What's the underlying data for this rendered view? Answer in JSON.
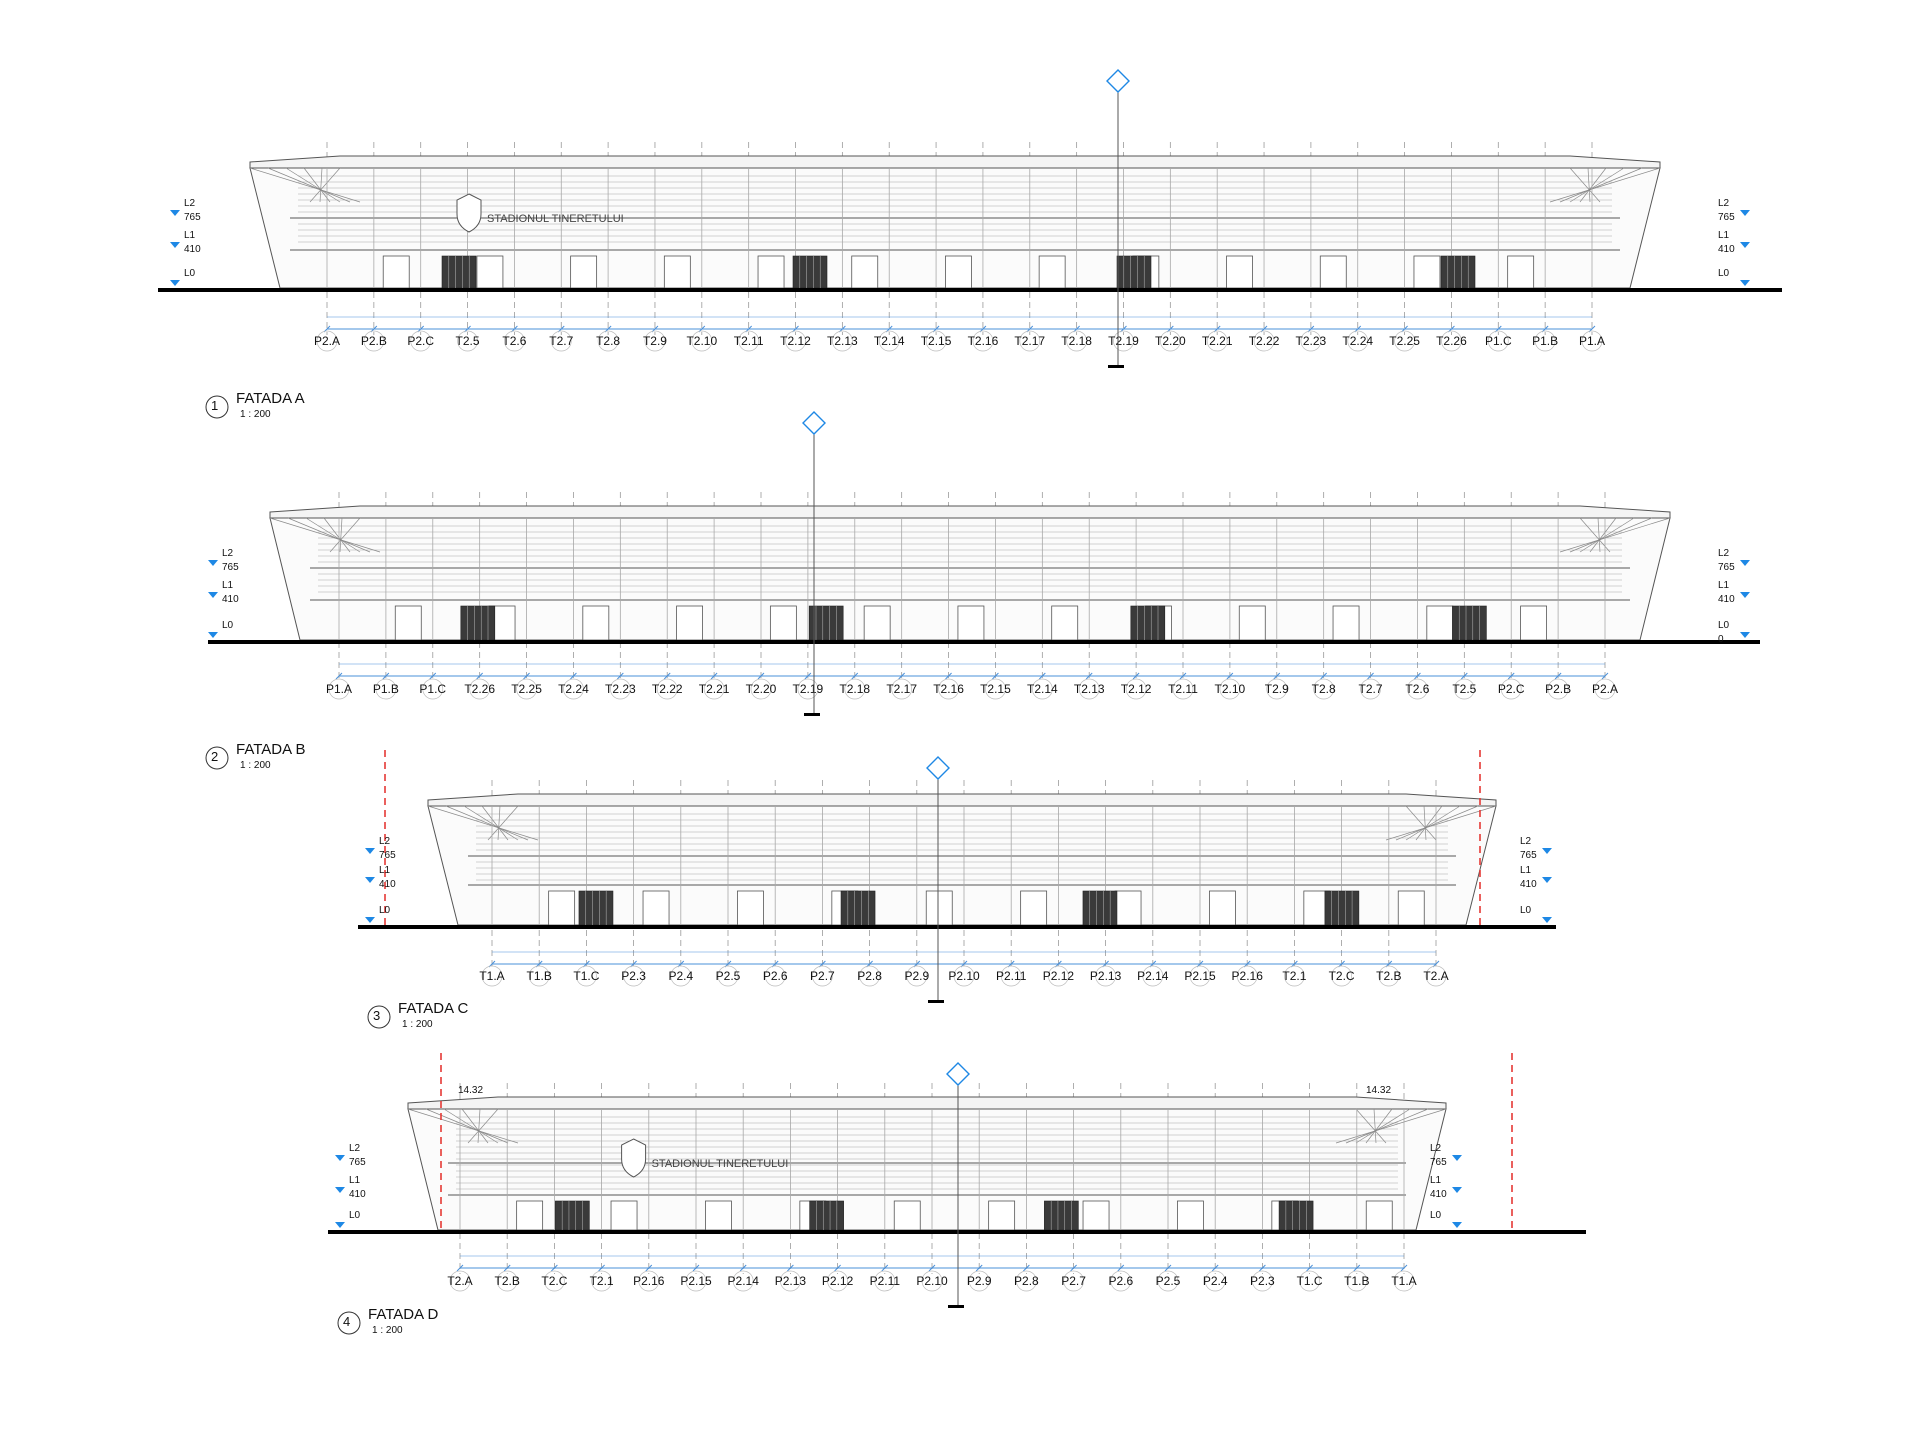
{
  "elevations": [
    {
      "title": "FATADA A",
      "number": "1",
      "scale": "1 : 200",
      "sign_text": "STADIONUL TINERETULUI",
      "levels_left": [
        {
          "name": "L2",
          "value": "765"
        },
        {
          "name": "L1",
          "value": "410"
        },
        {
          "name": "L0",
          "value": ""
        }
      ],
      "levels_right": [
        {
          "name": "L2",
          "value": "765"
        },
        {
          "name": "L1",
          "value": "410"
        },
        {
          "name": "L0",
          "value": ""
        }
      ],
      "grid_labels": [
        "P2.A",
        "P2.B",
        "P2.C",
        "T2.5",
        "T2.6",
        "T2.7",
        "T2.8",
        "T2.9",
        "T2.10",
        "T2.11",
        "T2.12",
        "T2.13",
        "T2.14",
        "T2.15",
        "T2.16",
        "T2.17",
        "T2.18",
        "T2.19",
        "T2.20",
        "T2.21",
        "T2.22",
        "T2.23",
        "T2.24",
        "T2.25",
        "T2.26",
        "P1.C",
        "P1.B",
        "P1.A"
      ]
    },
    {
      "title": "FATADA B",
      "number": "2",
      "scale": "1 : 200",
      "sign_text": "",
      "levels_left": [
        {
          "name": "L2",
          "value": "765"
        },
        {
          "name": "L1",
          "value": "410"
        },
        {
          "name": "L0",
          "value": ""
        }
      ],
      "levels_right": [
        {
          "name": "L2",
          "value": "765"
        },
        {
          "name": "L1",
          "value": "410"
        },
        {
          "name": "L0",
          "value": "0"
        }
      ],
      "grid_labels": [
        "P1.A",
        "P1.B",
        "P1.C",
        "T2.26",
        "T2.25",
        "T2.24",
        "T2.23",
        "T2.22",
        "T2.21",
        "T2.20",
        "T2.19",
        "T2.18",
        "T2.17",
        "T2.16",
        "T2.15",
        "T2.14",
        "T2.13",
        "T2.12",
        "T2.11",
        "T2.10",
        "T2.9",
        "T2.8",
        "T2.7",
        "T2.6",
        "T2.5",
        "P2.C",
        "P2.B",
        "P2.A"
      ]
    },
    {
      "title": "FATADA C",
      "number": "3",
      "scale": "1 : 200",
      "sign_text": "",
      "levels_left": [
        {
          "name": "L2",
          "value": "765"
        },
        {
          "name": "L1",
          "value": "410"
        },
        {
          "name": "L0",
          "value": ""
        }
      ],
      "levels_right": [
        {
          "name": "L2",
          "value": "765"
        },
        {
          "name": "L1",
          "value": "410"
        },
        {
          "name": "L0",
          "value": ""
        }
      ],
      "grid_labels": [
        "T1.A",
        "T1.B",
        "T1.C",
        "P2.3",
        "P2.4",
        "P2.5",
        "P2.6",
        "P2.7",
        "P2.8",
        "P2.9",
        "P2.10",
        "P2.11",
        "P2.12",
        "P2.13",
        "P2.14",
        "P2.15",
        "P2.16",
        "T2.1",
        "T2.C",
        "T2.B",
        "T2.A"
      ]
    },
    {
      "title": "FATADA D",
      "number": "4",
      "scale": "1 : 200",
      "sign_text": "STADIONUL TINERETULUI",
      "slope_left": "14.32",
      "slope_right": "14.32",
      "levels_left": [
        {
          "name": "L2",
          "value": "765"
        },
        {
          "name": "L1",
          "value": "410"
        },
        {
          "name": "L0",
          "value": ""
        }
      ],
      "levels_right": [
        {
          "name": "L2",
          "value": "765"
        },
        {
          "name": "L1",
          "value": "410"
        },
        {
          "name": "L0",
          "value": ""
        }
      ],
      "grid_labels": [
        "T2.A",
        "T2.B",
        "T2.C",
        "T2.1",
        "P2.16",
        "P2.15",
        "P2.14",
        "P2.13",
        "P2.12",
        "P2.11",
        "P2.10",
        "P2.9",
        "P2.8",
        "P2.7",
        "P2.6",
        "P2.5",
        "P2.4",
        "P2.3",
        "T1.C",
        "T1.B",
        "T1.A"
      ]
    }
  ],
  "colors": {
    "line": "#555555",
    "light_line": "#9a9a9a",
    "dimension": "#4a90d9",
    "level_marker": "#1e88e5",
    "property_line": "#e53935",
    "ground": "#000000"
  }
}
